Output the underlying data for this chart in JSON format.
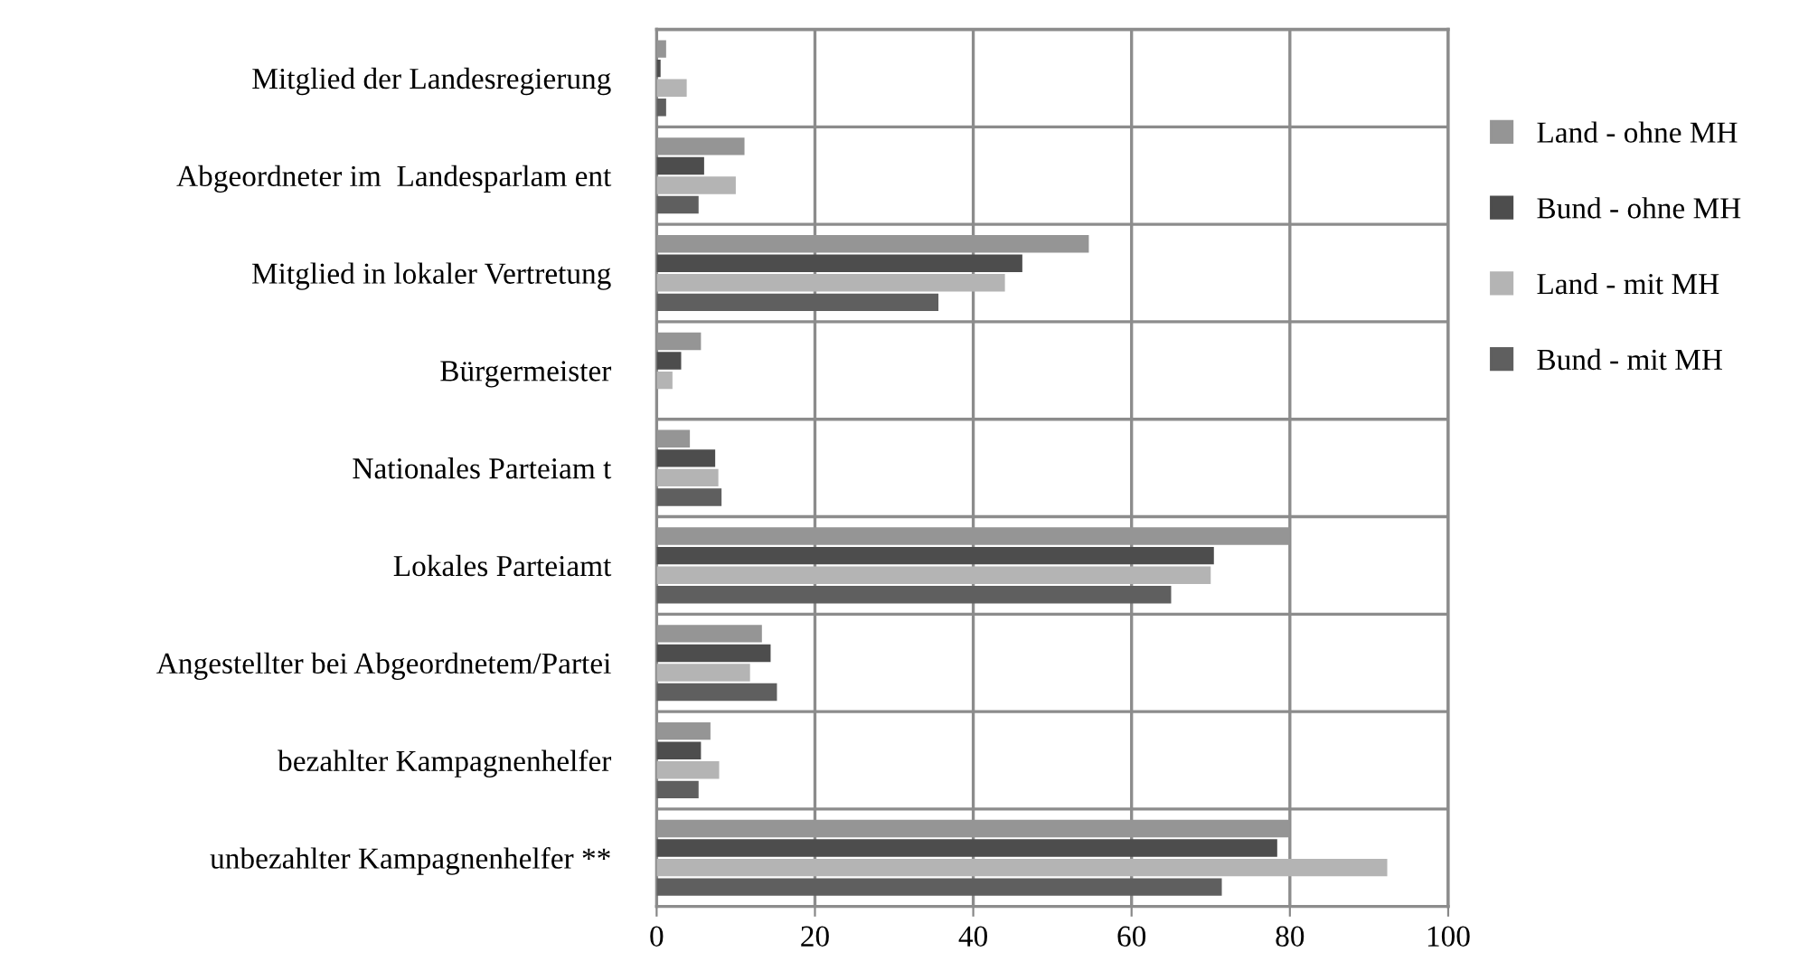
{
  "chart_data": {
    "type": "bar",
    "orientation": "horizontal",
    "categories": [
      "Mitglied der Landesregierung",
      "Abgeordneter im  Landesparlam ent",
      "Mitglied in lokaler Vertretung",
      "Bürgermeister",
      "Nationales Parteiam t",
      "Lokales Parteiamt",
      "Angestellter bei Abgeordnetem/Partei",
      "bezahlter Kampagnenhelfer",
      "unbezahlter Kampagnenhelfer **"
    ],
    "series": [
      {
        "name": "Land - ohne MH",
        "color": "#959595",
        "values": [
          1.2,
          11.1,
          54.6,
          5.6,
          4.2,
          80,
          13.3,
          6.8,
          80
        ]
      },
      {
        "name": "Bund - ohne MH",
        "color": "#4d4d4d",
        "values": [
          0.5,
          6.0,
          46.2,
          3.1,
          7.4,
          70.4,
          14.4,
          5.6,
          78.4
        ]
      },
      {
        "name": "Land - mit MH",
        "color": "#b4b4b4",
        "values": [
          3.8,
          10.0,
          44.0,
          2.0,
          7.8,
          70.0,
          11.8,
          7.9,
          92.3
        ]
      },
      {
        "name": "Bund - mit MH",
        "color": "#5f5f5f",
        "values": [
          1.2,
          5.3,
          35.6,
          0,
          8.2,
          65.0,
          15.2,
          5.3,
          71.4
        ]
      }
    ],
    "xlim": [
      0,
      100
    ],
    "xticks": [
      0,
      20,
      40,
      60,
      80,
      100
    ],
    "grid": true,
    "legend": "right"
  }
}
